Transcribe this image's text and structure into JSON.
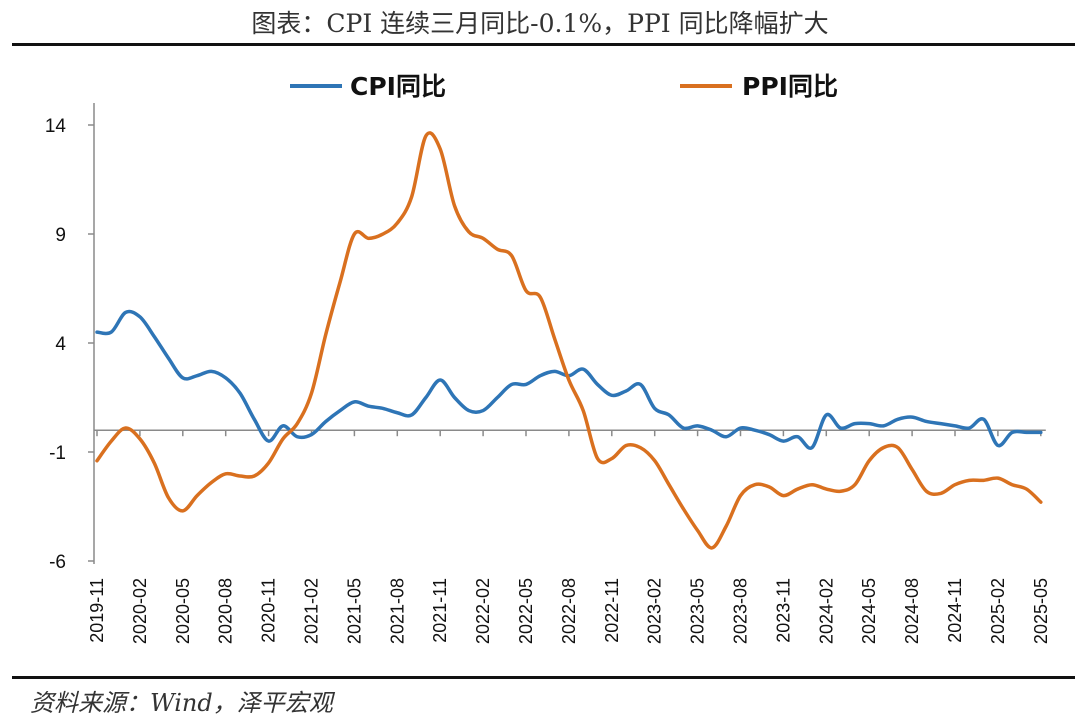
{
  "title": "图表：CPI 连续三月同比-0.1%，PPI 同比降幅扩大",
  "source": "资料来源：Wind，泽平宏观",
  "chart_data": {
    "type": "line",
    "title": "",
    "xlabel": "",
    "ylabel": "",
    "ylim": [
      -6,
      14
    ],
    "yticks": [
      -6,
      -1,
      4,
      9,
      14
    ],
    "legend_position": "top",
    "grid": false,
    "x": [
      "2019-11",
      "2019-12",
      "2020-01",
      "2020-02",
      "2020-03",
      "2020-04",
      "2020-05",
      "2020-06",
      "2020-07",
      "2020-08",
      "2020-09",
      "2020-10",
      "2020-11",
      "2020-12",
      "2021-01",
      "2021-02",
      "2021-03",
      "2021-04",
      "2021-05",
      "2021-06",
      "2021-07",
      "2021-08",
      "2021-09",
      "2021-10",
      "2021-11",
      "2021-12",
      "2022-01",
      "2022-02",
      "2022-03",
      "2022-04",
      "2022-05",
      "2022-06",
      "2022-07",
      "2022-08",
      "2022-09",
      "2022-10",
      "2022-11",
      "2022-12",
      "2023-01",
      "2023-02",
      "2023-03",
      "2023-04",
      "2023-05",
      "2023-06",
      "2023-07",
      "2023-08",
      "2023-09",
      "2023-10",
      "2023-11",
      "2023-12",
      "2024-01",
      "2024-02",
      "2024-03",
      "2024-04",
      "2024-05",
      "2024-06",
      "2024-07",
      "2024-08",
      "2024-09",
      "2024-10",
      "2024-11",
      "2024-12",
      "2025-01",
      "2025-02",
      "2025-03",
      "2025-04",
      "2025-05"
    ],
    "x_tick_labels": [
      "2019-11",
      "2020-02",
      "2020-05",
      "2020-08",
      "2020-11",
      "2021-02",
      "2021-05",
      "2021-08",
      "2021-11",
      "2022-02",
      "2022-05",
      "2022-08",
      "2022-11",
      "2023-02",
      "2023-05",
      "2023-08",
      "2023-11",
      "2024-02",
      "2024-05",
      "2024-08",
      "2024-11",
      "2025-02",
      "2025-05"
    ],
    "series": [
      {
        "name": "CPI同比",
        "color": "#2e75b6",
        "values": [
          4.5,
          4.5,
          5.4,
          5.2,
          4.3,
          3.3,
          2.4,
          2.5,
          2.7,
          2.4,
          1.7,
          0.5,
          -0.5,
          0.2,
          -0.3,
          -0.2,
          0.4,
          0.9,
          1.3,
          1.1,
          1.0,
          0.8,
          0.7,
          1.5,
          2.3,
          1.5,
          0.9,
          0.9,
          1.5,
          2.1,
          2.1,
          2.5,
          2.7,
          2.5,
          2.8,
          2.1,
          1.6,
          1.8,
          2.1,
          1.0,
          0.7,
          0.1,
          0.2,
          0.0,
          -0.3,
          0.1,
          0.0,
          -0.2,
          -0.5,
          -0.3,
          -0.8,
          0.7,
          0.1,
          0.3,
          0.3,
          0.2,
          0.5,
          0.6,
          0.4,
          0.3,
          0.2,
          0.1,
          0.5,
          -0.7,
          -0.1,
          -0.1,
          -0.1
        ]
      },
      {
        "name": "PPI同比",
        "color": "#d9701f",
        "values": [
          -1.4,
          -0.5,
          0.1,
          -0.4,
          -1.5,
          -3.1,
          -3.7,
          -3.0,
          -2.4,
          -2.0,
          -2.1,
          -2.1,
          -1.5,
          -0.4,
          0.3,
          1.7,
          4.4,
          6.8,
          9.0,
          8.8,
          9.0,
          9.5,
          10.7,
          13.5,
          12.9,
          10.3,
          9.1,
          8.8,
          8.3,
          8.0,
          6.4,
          6.1,
          4.2,
          2.3,
          0.9,
          -1.3,
          -1.3,
          -0.7,
          -0.8,
          -1.4,
          -2.5,
          -3.6,
          -4.6,
          -5.4,
          -4.4,
          -3.0,
          -2.5,
          -2.6,
          -3.0,
          -2.7,
          -2.5,
          -2.7,
          -2.8,
          -2.5,
          -1.4,
          -0.8,
          -0.8,
          -1.8,
          -2.8,
          -2.9,
          -2.5,
          -2.3,
          -2.3,
          -2.2,
          -2.5,
          -2.7,
          -3.3
        ]
      }
    ]
  }
}
